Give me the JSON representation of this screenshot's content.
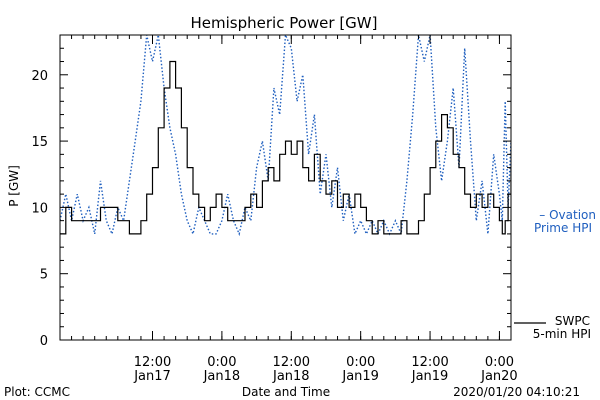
{
  "chart_data": {
    "type": "line",
    "title": "Hemispheric Power [GW]",
    "xlabel": "Date and Time",
    "ylabel": "P [GW]",
    "ylim": [
      0,
      23
    ],
    "yticks": [
      0,
      5,
      10,
      15,
      20
    ],
    "xlim": [
      "2020-01-16T20:00",
      "2020-01-20T02:00"
    ],
    "xticks": [
      {
        "t": "2020-01-17T12:00",
        "time": "12:00",
        "date": "Jan17"
      },
      {
        "t": "2020-01-18T00:00",
        "time": "0:00",
        "date": "Jan18"
      },
      {
        "t": "2020-01-18T12:00",
        "time": "12:00",
        "date": "Jan18"
      },
      {
        "t": "2020-01-19T00:00",
        "time": "0:00",
        "date": "Jan19"
      },
      {
        "t": "2020-01-19T12:00",
        "time": "12:00",
        "date": "Jan19"
      },
      {
        "t": "2020-01-20T00:00",
        "time": "0:00",
        "date": "Jan20"
      }
    ],
    "grid": false,
    "series": [
      {
        "name": "SWPC 5-min HPI",
        "legend_lines": [
          "SWPC",
          "5-min HPI"
        ],
        "style": "solid",
        "color": "#000000",
        "points": [
          [
            "2020-01-16T20:00",
            8
          ],
          [
            "2020-01-16T21:00",
            10
          ],
          [
            "2020-01-16T22:00",
            9
          ],
          [
            "2020-01-17T00:00",
            9
          ],
          [
            "2020-01-17T02:00",
            9
          ],
          [
            "2020-01-17T03:00",
            10
          ],
          [
            "2020-01-17T05:00",
            10
          ],
          [
            "2020-01-17T06:00",
            9
          ],
          [
            "2020-01-17T07:00",
            9
          ],
          [
            "2020-01-17T08:00",
            8
          ],
          [
            "2020-01-17T09:00",
            8
          ],
          [
            "2020-01-17T10:00",
            9
          ],
          [
            "2020-01-17T11:00",
            11
          ],
          [
            "2020-01-17T12:00",
            13
          ],
          [
            "2020-01-17T13:00",
            16
          ],
          [
            "2020-01-17T14:00",
            19
          ],
          [
            "2020-01-17T15:00",
            21
          ],
          [
            "2020-01-17T16:00",
            19
          ],
          [
            "2020-01-17T17:00",
            16
          ],
          [
            "2020-01-17T18:00",
            13
          ],
          [
            "2020-01-17T19:00",
            11
          ],
          [
            "2020-01-17T20:00",
            10
          ],
          [
            "2020-01-17T21:00",
            9
          ],
          [
            "2020-01-17T22:00",
            10
          ],
          [
            "2020-01-17T23:00",
            11
          ],
          [
            "2020-01-18T00:00",
            10
          ],
          [
            "2020-01-18T01:00",
            9
          ],
          [
            "2020-01-18T03:00",
            9
          ],
          [
            "2020-01-18T04:00",
            10
          ],
          [
            "2020-01-18T05:00",
            11
          ],
          [
            "2020-01-18T06:00",
            10
          ],
          [
            "2020-01-18T07:00",
            12
          ],
          [
            "2020-01-18T08:00",
            13
          ],
          [
            "2020-01-18T09:00",
            12
          ],
          [
            "2020-01-18T10:00",
            14
          ],
          [
            "2020-01-18T11:00",
            15
          ],
          [
            "2020-01-18T12:00",
            14
          ],
          [
            "2020-01-18T13:00",
            15
          ],
          [
            "2020-01-18T14:00",
            13
          ],
          [
            "2020-01-18T15:00",
            12
          ],
          [
            "2020-01-18T16:00",
            14
          ],
          [
            "2020-01-18T17:00",
            12
          ],
          [
            "2020-01-18T18:00",
            11
          ],
          [
            "2020-01-18T19:00",
            12
          ],
          [
            "2020-01-18T20:00",
            10
          ],
          [
            "2020-01-18T21:00",
            11
          ],
          [
            "2020-01-18T22:00",
            10
          ],
          [
            "2020-01-18T23:00",
            11
          ],
          [
            "2020-01-19T00:00",
            10
          ],
          [
            "2020-01-19T01:00",
            9
          ],
          [
            "2020-01-19T02:00",
            8
          ],
          [
            "2020-01-19T03:00",
            9
          ],
          [
            "2020-01-19T04:00",
            8
          ],
          [
            "2020-01-19T06:00",
            8
          ],
          [
            "2020-01-19T07:00",
            9
          ],
          [
            "2020-01-19T08:00",
            8
          ],
          [
            "2020-01-19T09:00",
            8
          ],
          [
            "2020-01-19T10:00",
            9
          ],
          [
            "2020-01-19T11:00",
            11
          ],
          [
            "2020-01-19T12:00",
            13
          ],
          [
            "2020-01-19T13:00",
            15
          ],
          [
            "2020-01-19T14:00",
            17
          ],
          [
            "2020-01-19T15:00",
            16
          ],
          [
            "2020-01-19T16:00",
            14
          ],
          [
            "2020-01-19T17:00",
            13
          ],
          [
            "2020-01-19T18:00",
            11
          ],
          [
            "2020-01-19T19:00",
            10
          ],
          [
            "2020-01-19T20:00",
            11
          ],
          [
            "2020-01-19T21:00",
            10
          ],
          [
            "2020-01-19T22:00",
            11
          ],
          [
            "2020-01-19T23:00",
            10
          ],
          [
            "2020-01-20T00:00",
            9
          ],
          [
            "2020-01-20T00:30",
            8
          ],
          [
            "2020-01-20T01:00",
            9
          ],
          [
            "2020-01-20T01:30",
            11
          ],
          [
            "2020-01-20T02:00",
            13
          ]
        ]
      },
      {
        "name": "Ovation Prime HPI",
        "legend_lines": [
          "– Ovation",
          "Prime HPI"
        ],
        "style": "dotted",
        "color": "#1f5fbf",
        "points": [
          [
            "2020-01-16T20:00",
            9
          ],
          [
            "2020-01-16T21:00",
            11
          ],
          [
            "2020-01-16T22:00",
            9
          ],
          [
            "2020-01-16T23:00",
            11
          ],
          [
            "2020-01-17T00:00",
            9
          ],
          [
            "2020-01-17T01:00",
            10
          ],
          [
            "2020-01-17T02:00",
            8
          ],
          [
            "2020-01-17T03:00",
            12
          ],
          [
            "2020-01-17T04:00",
            9
          ],
          [
            "2020-01-17T05:00",
            8
          ],
          [
            "2020-01-17T06:00",
            10
          ],
          [
            "2020-01-17T07:00",
            9
          ],
          [
            "2020-01-17T08:00",
            12
          ],
          [
            "2020-01-17T09:00",
            15
          ],
          [
            "2020-01-17T10:00",
            18
          ],
          [
            "2020-01-17T11:00",
            23
          ],
          [
            "2020-01-17T12:00",
            21
          ],
          [
            "2020-01-17T13:00",
            23
          ],
          [
            "2020-01-17T14:00",
            19
          ],
          [
            "2020-01-17T15:00",
            16
          ],
          [
            "2020-01-17T16:00",
            14
          ],
          [
            "2020-01-17T17:00",
            11
          ],
          [
            "2020-01-17T18:00",
            9
          ],
          [
            "2020-01-17T19:00",
            8
          ],
          [
            "2020-01-17T20:00",
            10
          ],
          [
            "2020-01-17T21:00",
            9
          ],
          [
            "2020-01-17T22:00",
            8
          ],
          [
            "2020-01-17T23:00",
            8
          ],
          [
            "2020-01-18T00:00",
            9
          ],
          [
            "2020-01-18T01:00",
            11
          ],
          [
            "2020-01-18T02:00",
            9
          ],
          [
            "2020-01-18T03:00",
            8
          ],
          [
            "2020-01-18T04:00",
            10
          ],
          [
            "2020-01-18T05:00",
            9
          ],
          [
            "2020-01-18T06:00",
            13
          ],
          [
            "2020-01-18T07:00",
            15
          ],
          [
            "2020-01-18T08:00",
            12
          ],
          [
            "2020-01-18T09:00",
            19
          ],
          [
            "2020-01-18T10:00",
            17
          ],
          [
            "2020-01-18T11:00",
            23
          ],
          [
            "2020-01-18T12:00",
            22
          ],
          [
            "2020-01-18T13:00",
            18
          ],
          [
            "2020-01-18T14:00",
            20
          ],
          [
            "2020-01-18T15:00",
            14
          ],
          [
            "2020-01-18T16:00",
            17
          ],
          [
            "2020-01-18T17:00",
            11
          ],
          [
            "2020-01-18T18:00",
            14
          ],
          [
            "2020-01-18T19:00",
            10
          ],
          [
            "2020-01-18T20:00",
            13
          ],
          [
            "2020-01-18T21:00",
            9
          ],
          [
            "2020-01-18T22:00",
            11
          ],
          [
            "2020-01-18T23:00",
            8
          ],
          [
            "2020-01-19T00:00",
            9
          ],
          [
            "2020-01-19T01:00",
            8
          ],
          [
            "2020-01-19T02:00",
            9
          ],
          [
            "2020-01-19T03:00",
            8
          ],
          [
            "2020-01-19T04:00",
            9
          ],
          [
            "2020-01-19T05:00",
            8
          ],
          [
            "2020-01-19T06:00",
            9
          ],
          [
            "2020-01-19T07:00",
            8
          ],
          [
            "2020-01-19T08:00",
            12
          ],
          [
            "2020-01-19T09:00",
            17
          ],
          [
            "2020-01-19T10:00",
            23
          ],
          [
            "2020-01-19T11:00",
            21
          ],
          [
            "2020-01-19T12:00",
            23
          ],
          [
            "2020-01-19T13:00",
            16
          ],
          [
            "2020-01-19T14:00",
            12
          ],
          [
            "2020-01-19T15:00",
            15
          ],
          [
            "2020-01-19T16:00",
            19
          ],
          [
            "2020-01-19T17:00",
            13
          ],
          [
            "2020-01-19T18:00",
            22
          ],
          [
            "2020-01-19T19:00",
            15
          ],
          [
            "2020-01-19T20:00",
            9
          ],
          [
            "2020-01-19T21:00",
            12
          ],
          [
            "2020-01-19T22:00",
            8
          ],
          [
            "2020-01-19T23:00",
            14
          ],
          [
            "2020-01-20T00:00",
            11
          ],
          [
            "2020-01-20T00:30",
            9
          ],
          [
            "2020-01-20T01:00",
            18
          ],
          [
            "2020-01-20T01:30",
            10
          ],
          [
            "2020-01-20T02:00",
            15
          ]
        ]
      }
    ]
  },
  "footer": {
    "left": "Plot: CCMC",
    "center": "Date and Time",
    "right": "2020/01/20 04:10:21"
  }
}
